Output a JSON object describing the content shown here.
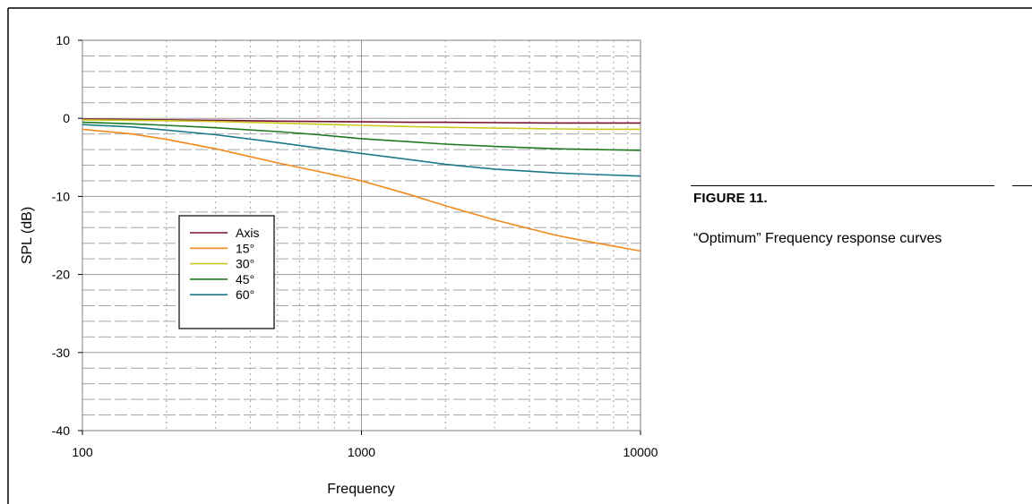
{
  "figure": {
    "number": "FIGURE 11.",
    "caption": "“Optimum” Frequency response curves"
  },
  "chart_data": {
    "type": "line",
    "xlabel": "Frequency",
    "ylabel": "SPL (dB)",
    "xscale": "log",
    "xlim": [
      100,
      10000
    ],
    "ylim": [
      -40,
      10
    ],
    "x_ticks": [
      100,
      1000,
      10000
    ],
    "x_tick_labels": [
      "100",
      "1000",
      "10000"
    ],
    "y_ticks": [
      -40,
      -30,
      -20,
      -10,
      0,
      10
    ],
    "y_tick_labels": [
      "-40",
      "-30",
      "-20",
      "-10",
      "0",
      "10"
    ],
    "grid": true,
    "legend_position": "lower-left",
    "x": [
      100,
      150,
      200,
      300,
      500,
      700,
      1000,
      1500,
      2000,
      3000,
      5000,
      7000,
      10000
    ],
    "series": [
      {
        "name": "Axis",
        "color": "#7a1030",
        "values": [
          -0.1,
          -0.15,
          -0.2,
          -0.25,
          -0.35,
          -0.4,
          -0.45,
          -0.5,
          -0.5,
          -0.55,
          -0.6,
          -0.6,
          -0.6
        ]
      },
      {
        "name": "15°",
        "color": "#f08a1c",
        "values": [
          -1.4,
          -2.0,
          -2.7,
          -3.9,
          -5.7,
          -6.8,
          -8.0,
          -9.8,
          -11.2,
          -13.0,
          -15.0,
          -16.0,
          -17.0
        ]
      },
      {
        "name": "30°",
        "color": "#c8c820",
        "values": [
          -0.2,
          -0.25,
          -0.3,
          -0.4,
          -0.6,
          -0.75,
          -0.9,
          -1.05,
          -1.15,
          -1.25,
          -1.35,
          -1.4,
          -1.4
        ]
      },
      {
        "name": "45°",
        "color": "#1f7a1f",
        "values": [
          -0.5,
          -0.7,
          -0.9,
          -1.2,
          -1.7,
          -2.1,
          -2.6,
          -3.0,
          -3.3,
          -3.6,
          -3.9,
          -4.0,
          -4.1
        ]
      },
      {
        "name": "60°",
        "color": "#1c7a88",
        "values": [
          -0.8,
          -1.1,
          -1.5,
          -2.1,
          -3.1,
          -3.8,
          -4.5,
          -5.3,
          -5.9,
          -6.5,
          -7.0,
          -7.2,
          -7.4
        ]
      }
    ]
  }
}
